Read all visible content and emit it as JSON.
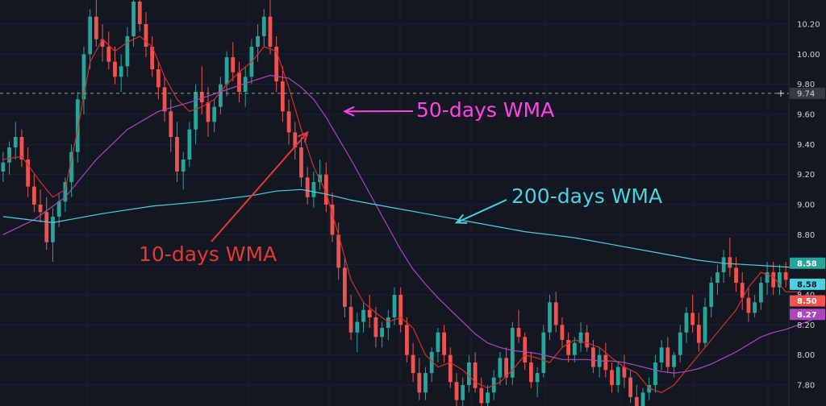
{
  "chart_data": {
    "type": "candlestick",
    "title": "",
    "xlabel": "",
    "ylabel": "",
    "ylim": [
      7.62,
      10.4
    ],
    "grid": true,
    "y_ticks": [
      "10.20",
      "10.00",
      "9.80",
      "9.60",
      "9.40",
      "9.20",
      "9.00",
      "8.80",
      "8.60",
      "8.40",
      "8.20",
      "8.00",
      "7.80"
    ],
    "crosshair_price": "9.74",
    "colors": {
      "background": "#131722",
      "grid": "#1e2230",
      "up": "#26a69a",
      "down": "#ef5350",
      "wma10": "#d32f2f",
      "wma50": "#ab47bc",
      "wma200": "#4dd0e1"
    },
    "candles": [
      [
        9.22,
        9.35,
        9.15,
        9.28
      ],
      [
        9.28,
        9.42,
        9.2,
        9.38
      ],
      [
        9.38,
        9.55,
        9.3,
        9.45
      ],
      [
        9.45,
        9.5,
        9.25,
        9.3
      ],
      [
        9.3,
        9.38,
        9.05,
        9.12
      ],
      [
        9.12,
        9.2,
        8.95,
        9.0
      ],
      [
        9.0,
        9.1,
        8.88,
        8.95
      ],
      [
        8.95,
        9.05,
        8.7,
        8.75
      ],
      [
        8.75,
        8.98,
        8.62,
        8.92
      ],
      [
        8.92,
        9.08,
        8.85,
        9.02
      ],
      [
        9.02,
        9.18,
        8.95,
        9.15
      ],
      [
        9.15,
        9.4,
        9.05,
        9.35
      ],
      [
        9.35,
        9.75,
        9.28,
        9.7
      ],
      [
        9.7,
        10.05,
        9.6,
        10.0
      ],
      [
        10.0,
        10.3,
        9.9,
        10.25
      ],
      [
        10.25,
        10.38,
        10.05,
        10.1
      ],
      [
        10.1,
        10.2,
        9.95,
        10.05
      ],
      [
        10.05,
        10.15,
        9.9,
        9.95
      ],
      [
        9.95,
        10.05,
        9.8,
        9.85
      ],
      [
        9.85,
        10.0,
        9.75,
        9.92
      ],
      [
        9.92,
        10.18,
        9.85,
        10.12
      ],
      [
        10.12,
        10.4,
        10.05,
        10.35
      ],
      [
        10.35,
        10.42,
        10.15,
        10.2
      ],
      [
        10.2,
        10.28,
        9.98,
        10.05
      ],
      [
        10.05,
        10.12,
        9.85,
        9.9
      ],
      [
        9.9,
        9.95,
        9.7,
        9.78
      ],
      [
        9.78,
        9.85,
        9.55,
        9.62
      ],
      [
        9.62,
        9.7,
        9.35,
        9.45
      ],
      [
        9.45,
        9.55,
        9.15,
        9.22
      ],
      [
        9.22,
        9.35,
        9.1,
        9.3
      ],
      [
        9.3,
        9.55,
        9.25,
        9.5
      ],
      [
        9.5,
        9.8,
        9.4,
        9.75
      ],
      [
        9.75,
        9.92,
        9.6,
        9.68
      ],
      [
        9.68,
        9.78,
        9.45,
        9.55
      ],
      [
        9.55,
        9.7,
        9.48,
        9.65
      ],
      [
        9.65,
        9.85,
        9.6,
        9.8
      ],
      [
        9.8,
        10.02,
        9.72,
        9.98
      ],
      [
        9.98,
        10.08,
        9.82,
        9.88
      ],
      [
        9.88,
        9.95,
        9.68,
        9.75
      ],
      [
        9.75,
        9.92,
        9.65,
        9.85
      ],
      [
        9.85,
        10.1,
        9.8,
        10.05
      ],
      [
        10.05,
        10.2,
        9.95,
        10.12
      ],
      [
        10.12,
        10.3,
        10.05,
        10.25
      ],
      [
        10.25,
        10.38,
        10.0,
        10.05
      ],
      [
        10.05,
        10.12,
        9.75,
        9.82
      ],
      [
        9.82,
        9.92,
        9.55,
        9.62
      ],
      [
        9.62,
        9.7,
        9.4,
        9.48
      ],
      [
        9.48,
        9.55,
        9.3,
        9.38
      ],
      [
        9.38,
        9.45,
        9.12,
        9.18
      ],
      [
        9.18,
        9.25,
        9.0,
        9.05
      ],
      [
        9.05,
        9.22,
        8.98,
        9.15
      ],
      [
        9.15,
        9.3,
        9.1,
        9.2
      ],
      [
        9.2,
        9.28,
        8.95,
        9.0
      ],
      [
        9.0,
        9.08,
        8.75,
        8.8
      ],
      [
        8.8,
        8.88,
        8.5,
        8.58
      ],
      [
        8.58,
        8.65,
        8.25,
        8.32
      ],
      [
        8.32,
        8.4,
        8.1,
        8.15
      ],
      [
        8.15,
        8.28,
        8.02,
        8.22
      ],
      [
        8.22,
        8.35,
        8.15,
        8.3
      ],
      [
        8.3,
        8.4,
        8.18,
        8.25
      ],
      [
        8.25,
        8.32,
        8.05,
        8.12
      ],
      [
        8.12,
        8.22,
        8.05,
        8.18
      ],
      [
        8.18,
        8.3,
        8.1,
        8.25
      ],
      [
        8.25,
        8.45,
        8.2,
        8.4
      ],
      [
        8.4,
        8.45,
        8.15,
        8.2
      ],
      [
        8.2,
        8.25,
        7.95,
        8.0
      ],
      [
        8.0,
        8.08,
        7.82,
        7.88
      ],
      [
        7.88,
        7.98,
        7.7,
        7.75
      ],
      [
        7.75,
        7.92,
        7.7,
        7.88
      ],
      [
        7.88,
        8.05,
        7.82,
        8.02
      ],
      [
        8.02,
        8.18,
        7.95,
        8.15
      ],
      [
        8.15,
        8.2,
        7.95,
        8.0
      ],
      [
        8.0,
        8.05,
        7.78,
        7.82
      ],
      [
        7.82,
        7.88,
        7.65,
        7.7
      ],
      [
        7.7,
        7.85,
        7.65,
        7.8
      ],
      [
        7.8,
        8.0,
        7.75,
        7.95
      ],
      [
        7.95,
        8.02,
        7.75,
        7.78
      ],
      [
        7.78,
        7.85,
        7.62,
        7.68
      ],
      [
        7.68,
        7.8,
        7.62,
        7.75
      ],
      [
        7.75,
        7.9,
        7.7,
        7.85
      ],
      [
        7.85,
        8.02,
        7.8,
        7.98
      ],
      [
        7.98,
        8.05,
        7.8,
        7.85
      ],
      [
        7.85,
        8.22,
        7.8,
        8.18
      ],
      [
        8.18,
        8.3,
        8.08,
        8.12
      ],
      [
        8.12,
        8.15,
        7.9,
        7.95
      ],
      [
        7.95,
        8.02,
        7.78,
        7.82
      ],
      [
        7.82,
        7.92,
        7.72,
        7.88
      ],
      [
        7.88,
        8.2,
        7.85,
        8.15
      ],
      [
        8.15,
        8.4,
        8.1,
        8.35
      ],
      [
        8.35,
        8.42,
        8.15,
        8.2
      ],
      [
        8.2,
        8.25,
        8.05,
        8.1
      ],
      [
        8.1,
        8.15,
        7.95,
        8.0
      ],
      [
        8.0,
        8.12,
        7.95,
        8.08
      ],
      [
        8.08,
        8.22,
        8.02,
        8.15
      ],
      [
        8.15,
        8.2,
        8.02,
        8.05
      ],
      [
        8.05,
        8.1,
        7.88,
        7.92
      ],
      [
        7.92,
        8.05,
        7.85,
        8.0
      ],
      [
        8.0,
        8.08,
        7.85,
        7.9
      ],
      [
        7.9,
        7.95,
        7.75,
        7.8
      ],
      [
        7.8,
        7.95,
        7.75,
        7.92
      ],
      [
        7.92,
        8.0,
        7.78,
        7.85
      ],
      [
        7.85,
        7.9,
        7.68,
        7.72
      ],
      [
        7.72,
        7.8,
        7.62,
        7.66
      ],
      [
        7.66,
        7.78,
        7.62,
        7.75
      ],
      [
        7.75,
        7.85,
        7.7,
        7.8
      ],
      [
        7.8,
        8.0,
        7.75,
        7.95
      ],
      [
        7.95,
        8.1,
        7.9,
        8.05
      ],
      [
        8.05,
        8.12,
        7.88,
        7.92
      ],
      [
        7.92,
        8.02,
        7.85,
        8.0
      ],
      [
        8.0,
        8.2,
        7.95,
        8.15
      ],
      [
        8.15,
        8.32,
        8.08,
        8.28
      ],
      [
        8.28,
        8.4,
        8.15,
        8.2
      ],
      [
        8.2,
        8.28,
        8.02,
        8.08
      ],
      [
        8.08,
        8.38,
        8.05,
        8.32
      ],
      [
        8.32,
        8.52,
        8.25,
        8.48
      ],
      [
        8.48,
        8.6,
        8.4,
        8.55
      ],
      [
        8.55,
        8.7,
        8.48,
        8.65
      ],
      [
        8.65,
        8.78,
        8.52,
        8.58
      ],
      [
        8.58,
        8.65,
        8.42,
        8.48
      ],
      [
        8.48,
        8.55,
        8.3,
        8.38
      ],
      [
        8.38,
        8.45,
        8.22,
        8.28
      ],
      [
        8.28,
        8.4,
        8.25,
        8.35
      ],
      [
        8.35,
        8.52,
        8.3,
        8.48
      ],
      [
        8.48,
        8.62,
        8.4,
        8.55
      ],
      [
        8.55,
        8.62,
        8.4,
        8.45
      ],
      [
        8.45,
        8.6,
        8.4,
        8.55
      ],
      [
        8.55,
        8.62,
        8.45,
        8.5
      ]
    ],
    "series": [
      {
        "name": "10-days WMA",
        "color": "#d32f2f",
        "points": [
          [
            0,
            9.3
          ],
          [
            3,
            9.32
          ],
          [
            6,
            9.15
          ],
          [
            8,
            9.05
          ],
          [
            10,
            9.1
          ],
          [
            12,
            9.5
          ],
          [
            14,
            9.95
          ],
          [
            16,
            10.1
          ],
          [
            18,
            10.02
          ],
          [
            20,
            10.08
          ],
          [
            22,
            10.12
          ],
          [
            24,
            10.05
          ],
          [
            26,
            9.85
          ],
          [
            28,
            9.7
          ],
          [
            30,
            9.62
          ],
          [
            32,
            9.65
          ],
          [
            34,
            9.7
          ],
          [
            36,
            9.8
          ],
          [
            38,
            9.88
          ],
          [
            40,
            9.95
          ],
          [
            42,
            10.05
          ],
          [
            44,
            10.02
          ],
          [
            46,
            9.78
          ],
          [
            48,
            9.5
          ],
          [
            50,
            9.25
          ],
          [
            52,
            9.08
          ],
          [
            54,
            8.8
          ],
          [
            56,
            8.5
          ],
          [
            58,
            8.35
          ],
          [
            60,
            8.28
          ],
          [
            62,
            8.22
          ],
          [
            64,
            8.25
          ],
          [
            66,
            8.18
          ],
          [
            68,
            8.0
          ],
          [
            70,
            7.92
          ],
          [
            72,
            7.95
          ],
          [
            74,
            7.9
          ],
          [
            76,
            7.82
          ],
          [
            78,
            7.78
          ],
          [
            80,
            7.82
          ],
          [
            82,
            7.9
          ],
          [
            84,
            8.0
          ],
          [
            86,
            7.98
          ],
          [
            88,
            7.95
          ],
          [
            90,
            8.05
          ],
          [
            92,
            8.1
          ],
          [
            94,
            8.08
          ],
          [
            96,
            8.05
          ],
          [
            98,
            7.98
          ],
          [
            100,
            7.92
          ],
          [
            102,
            7.88
          ],
          [
            104,
            7.78
          ],
          [
            106,
            7.75
          ],
          [
            108,
            7.8
          ],
          [
            110,
            7.9
          ],
          [
            112,
            8.0
          ],
          [
            114,
            8.1
          ],
          [
            116,
            8.2
          ],
          [
            118,
            8.3
          ],
          [
            120,
            8.45
          ],
          [
            122,
            8.55
          ],
          [
            124,
            8.52
          ],
          [
            126,
            8.42
          ],
          [
            128,
            8.42
          ],
          [
            130,
            8.48
          ],
          [
            132,
            8.5
          ]
        ]
      },
      {
        "name": "50-days WMA",
        "color": "#ab47bc",
        "points": [
          [
            0,
            8.8
          ],
          [
            5,
            8.9
          ],
          [
            10,
            9.05
          ],
          [
            15,
            9.3
          ],
          [
            20,
            9.5
          ],
          [
            25,
            9.62
          ],
          [
            30,
            9.68
          ],
          [
            35,
            9.75
          ],
          [
            40,
            9.82
          ],
          [
            43,
            9.86
          ],
          [
            46,
            9.84
          ],
          [
            48,
            9.78
          ],
          [
            50,
            9.7
          ],
          [
            52,
            9.58
          ],
          [
            54,
            9.44
          ],
          [
            56,
            9.3
          ],
          [
            58,
            9.15
          ],
          [
            60,
            9.0
          ],
          [
            62,
            8.85
          ],
          [
            64,
            8.7
          ],
          [
            66,
            8.57
          ],
          [
            68,
            8.47
          ],
          [
            70,
            8.38
          ],
          [
            72,
            8.3
          ],
          [
            74,
            8.22
          ],
          [
            76,
            8.14
          ],
          [
            78,
            8.08
          ],
          [
            80,
            8.05
          ],
          [
            82,
            8.03
          ],
          [
            84,
            8.02
          ],
          [
            86,
            8.01
          ],
          [
            88,
            7.99
          ],
          [
            90,
            7.97
          ],
          [
            92,
            7.97
          ],
          [
            94,
            7.97
          ],
          [
            96,
            7.96
          ],
          [
            98,
            7.96
          ],
          [
            100,
            7.95
          ],
          [
            102,
            7.93
          ],
          [
            104,
            7.91
          ],
          [
            106,
            7.89
          ],
          [
            108,
            7.88
          ],
          [
            110,
            7.89
          ],
          [
            112,
            7.91
          ],
          [
            114,
            7.94
          ],
          [
            116,
            7.98
          ],
          [
            118,
            8.02
          ],
          [
            120,
            8.07
          ],
          [
            122,
            8.12
          ],
          [
            124,
            8.15
          ],
          [
            126,
            8.17
          ],
          [
            128,
            8.2
          ],
          [
            130,
            8.23
          ],
          [
            132,
            8.27
          ]
        ]
      },
      {
        "name": "200-days WMA",
        "color": "#4dd0e1",
        "points": [
          [
            0,
            8.92
          ],
          [
            8,
            8.88
          ],
          [
            16,
            8.94
          ],
          [
            24,
            8.99
          ],
          [
            32,
            9.02
          ],
          [
            40,
            9.06
          ],
          [
            44,
            9.09
          ],
          [
            48,
            9.1
          ],
          [
            52,
            9.07
          ],
          [
            56,
            9.03
          ],
          [
            60,
            9.0
          ],
          [
            64,
            8.97
          ],
          [
            68,
            8.94
          ],
          [
            72,
            8.91
          ],
          [
            76,
            8.88
          ],
          [
            80,
            8.85
          ],
          [
            84,
            8.82
          ],
          [
            88,
            8.8
          ],
          [
            92,
            8.78
          ],
          [
            96,
            8.75
          ],
          [
            100,
            8.72
          ],
          [
            104,
            8.69
          ],
          [
            108,
            8.66
          ],
          [
            112,
            8.63
          ],
          [
            116,
            8.61
          ],
          [
            120,
            8.6
          ],
          [
            124,
            8.59
          ],
          [
            128,
            8.58
          ],
          [
            132,
            8.58
          ]
        ]
      }
    ],
    "price_tags": [
      {
        "label": "8.58",
        "value": 8.61,
        "bg": "#26a69a",
        "fg": "#ffffff"
      },
      {
        "label": "8.58",
        "value": 8.47,
        "bg": "#4dd0e1",
        "fg": "#131722"
      },
      {
        "label": "8.50",
        "value": 8.36,
        "bg": "#ef5350",
        "fg": "#ffffff"
      },
      {
        "label": "8.27",
        "value": 8.27,
        "bg": "#ab47bc",
        "fg": "#ffffff"
      }
    ],
    "annotations": [
      {
        "text": "50-days WMA",
        "color": "#ff44e6",
        "arrow_to_index": 55,
        "arrow_to_value": 9.62
      },
      {
        "text": "200-days WMA",
        "color": "#4dd0e1",
        "arrow_to_index": 73,
        "arrow_to_value": 8.88
      },
      {
        "text": "10-days WMA",
        "color": "#e53935",
        "arrow_to_index": 49,
        "arrow_to_value": 9.48
      }
    ]
  }
}
